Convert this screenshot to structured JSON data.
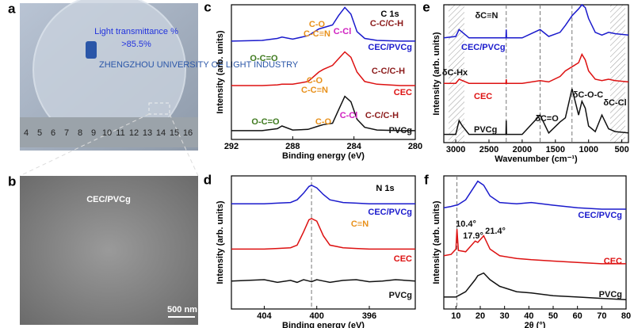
{
  "photo_a": {
    "panel": "a",
    "caption": [
      "Light transmittance %",
      ">85.5%"
    ],
    "logo": "ZHENGZHOU UNIVERSITY OF LIGHT INDUSTRY",
    "ruler": [
      4,
      5,
      6,
      7,
      8,
      9,
      10,
      11,
      12,
      13,
      14,
      15,
      16
    ]
  },
  "photo_b": {
    "panel": "b",
    "label": "CEC/PVCg",
    "scale": "500 nm"
  },
  "chart_data": [
    {
      "type": "line",
      "panel": "c",
      "title": "C 1s",
      "xlabel": "Binding energy (eV)",
      "ylabel": "Intensity (arb. units)",
      "x": [
        292,
        290,
        289,
        288.7,
        288,
        287,
        286.3,
        286,
        285.4,
        285,
        284.6,
        284.2,
        283.8,
        283.3,
        282.5,
        281,
        280
      ],
      "xlim": [
        292,
        280
      ],
      "xticks": [
        292,
        288,
        284,
        280
      ],
      "ylim": [
        0,
        100
      ],
      "ref_lines": [],
      "series": [
        {
          "name": "CEC/PVCg",
          "color": "#1a1acc",
          "values": [
            73,
            73.5,
            75,
            76,
            74.5,
            77,
            82,
            83,
            85,
            92,
            98,
            93,
            80,
            75,
            73.5,
            73,
            73
          ]
        },
        {
          "name": "CEC",
          "color": "#dd1111",
          "values": [
            40,
            40,
            40.5,
            41,
            41,
            43,
            50,
            52,
            55,
            60,
            65,
            61,
            50,
            43,
            41,
            40,
            40
          ]
        },
        {
          "name": "PVCg",
          "color": "#111111",
          "values": [
            6.5,
            6.5,
            8,
            10,
            7,
            7.5,
            10,
            11,
            12,
            22,
            32,
            28,
            15,
            9,
            7,
            6.5,
            6.5
          ]
        }
      ],
      "annotations": [
        {
          "text": "O-C=O",
          "color": "#3f7a1f"
        },
        {
          "text": "C-O",
          "color": "#e8901a"
        },
        {
          "text": "C-C≡N",
          "color": "#e8901a"
        },
        {
          "text": "C-Cl",
          "color": "#d020c0"
        },
        {
          "text": "C-C/C-H",
          "color": "#8b1a1a"
        },
        {
          "text": "C-O",
          "color": "#e8901a"
        },
        {
          "text": "C-C≡N",
          "color": "#e8901a"
        },
        {
          "text": "C-C/C-H",
          "color": "#8b1a1a"
        },
        {
          "text": "O-C=O",
          "color": "#3f7a1f"
        },
        {
          "text": "C-O",
          "color": "#e8901a"
        },
        {
          "text": "C-Cl",
          "color": "#d020c0"
        },
        {
          "text": "C-C/C-H",
          "color": "#8b1a1a"
        }
      ]
    },
    {
      "type": "line",
      "panel": "d",
      "title": "N 1s",
      "xlabel": "Binding energy (eV)",
      "ylabel": "Intensity (arb. units)",
      "x": [
        406.5,
        404,
        403,
        402,
        401.5,
        401,
        400.6,
        400.4,
        400,
        399.5,
        399,
        398,
        397,
        396,
        395,
        394,
        392.5
      ],
      "xlim": [
        406.5,
        392.5
      ],
      "xticks": [
        404,
        400,
        396
      ],
      "ylim": [
        0,
        100
      ],
      "ref_lines": [
        400.4
      ],
      "series": [
        {
          "name": "CEC/PVCg",
          "color": "#1a1acc",
          "values": [
            79,
            79,
            79.5,
            80,
            82,
            87,
            92,
            93,
            91,
            86,
            82,
            80,
            79.5,
            79,
            79,
            79,
            79
          ]
        },
        {
          "name": "CEC",
          "color": "#dd1111",
          "values": [
            45,
            45,
            45.5,
            46,
            48,
            58,
            67,
            68,
            66,
            55,
            48,
            46,
            45.5,
            45,
            45,
            45,
            45
          ]
        },
        {
          "name": "PVCg",
          "color": "#111111",
          "values": [
            21,
            22,
            20,
            21.5,
            20,
            22,
            21,
            20.5,
            22,
            21,
            20,
            21.5,
            22,
            20.5,
            21,
            22,
            21
          ]
        }
      ],
      "annotations": [
        {
          "text": "C≡N",
          "color": "#e8901a"
        }
      ]
    },
    {
      "type": "line",
      "panel": "e",
      "title": null,
      "xlabel": "Wavenumber (cm⁻¹)",
      "ylabel": "Intensity (arb. units)",
      "x": [
        3180,
        3000,
        2950,
        2900,
        2800,
        2500,
        2245,
        2240,
        2235,
        2000,
        1730,
        1600,
        1430,
        1350,
        1250,
        1150,
        1100,
        1050,
        1000,
        900,
        800,
        700,
        600,
        400
      ],
      "xlim": [
        3180,
        400
      ],
      "xticks": [
        3000,
        2500,
        2000,
        1500,
        1000,
        500
      ],
      "ylim": [
        0,
        100
      ],
      "ref_lines": [
        2240,
        1730,
        1250
      ],
      "series": [
        {
          "name": "CEC/PVCg",
          "color": "#1a1acc",
          "values": [
            76,
            77,
            82,
            80,
            76,
            76,
            76,
            82,
            76,
            76,
            82,
            77,
            80,
            85,
            92,
            97,
            100,
            98,
            90,
            80,
            78,
            80,
            79,
            78
          ]
        },
        {
          "name": "CEC",
          "color": "#dd1111",
          "values": [
            43,
            43,
            46,
            45,
            43,
            43,
            43,
            46,
            43,
            43,
            45,
            44,
            48,
            52,
            55,
            58,
            64,
            60,
            52,
            46,
            45,
            46,
            45,
            44
          ]
        },
        {
          "name": "PVCg",
          "color": "#111111",
          "values": [
            6,
            6,
            16,
            12,
            6,
            6,
            6,
            16,
            6,
            6,
            20,
            7,
            15,
            18,
            39,
            20,
            30,
            25,
            12,
            8,
            20,
            10,
            8,
            7
          ]
        }
      ],
      "annotations": [
        {
          "text": "δC≡N",
          "color": "#111111"
        },
        {
          "text": "δC-Hx",
          "color": "#111111"
        },
        {
          "text": "δC=O",
          "color": "#111111"
        },
        {
          "text": "δC-O-C",
          "color": "#111111"
        },
        {
          "text": "δC-Cl",
          "color": "#111111"
        }
      ]
    },
    {
      "type": "line",
      "panel": "f",
      "title": null,
      "xlabel": "2θ (°)",
      "ylabel": "Intensity (arb. units)",
      "x": [
        5,
        8,
        10,
        10.4,
        11,
        14,
        17.9,
        19,
        21.4,
        24,
        28,
        35,
        41,
        50,
        60,
        70,
        80
      ],
      "xlim": [
        5,
        80
      ],
      "xticks": [
        10,
        20,
        30,
        40,
        50,
        60,
        70,
        80
      ],
      "ylim": [
        0,
        100
      ],
      "ref_lines": [
        10.4
      ],
      "series": [
        {
          "name": "CEC/PVCg",
          "color": "#1a1acc",
          "values": [
            76,
            77,
            78,
            78,
            78.5,
            82,
            93,
            96,
            93,
            85,
            80,
            79,
            80,
            78,
            76,
            75,
            75
          ]
        },
        {
          "name": "CEC",
          "color": "#dd1111",
          "values": [
            40,
            41,
            45,
            60,
            44,
            43,
            51,
            50,
            55,
            45,
            40,
            38,
            37,
            36,
            35,
            34,
            34
          ]
        },
        {
          "name": "PVCg",
          "color": "#111111",
          "values": [
            9,
            9,
            9,
            9.5,
            10,
            13,
            22,
            25,
            27,
            22,
            17,
            13,
            12,
            10,
            9,
            8,
            7
          ]
        }
      ],
      "annotations": [
        {
          "text": "10.4°",
          "color": "#111111"
        },
        {
          "text": "17.9°",
          "color": "#111111"
        },
        {
          "text": "21.4°",
          "color": "#111111"
        }
      ]
    }
  ]
}
